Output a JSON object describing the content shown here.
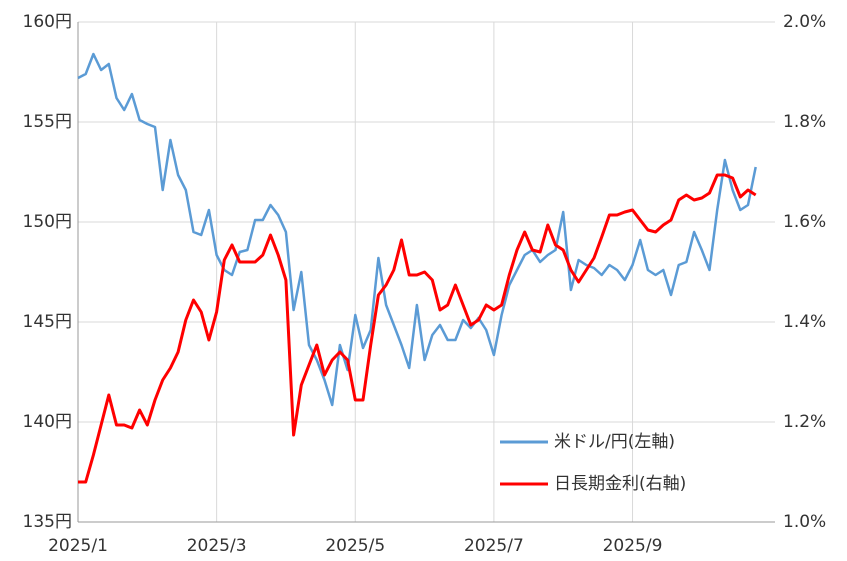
{
  "chart_data": {
    "type": "line",
    "categories": [
      "2025/1",
      null,
      null,
      null,
      null,
      null,
      null,
      null,
      null,
      null,
      null,
      null,
      null,
      null,
      null,
      null,
      null,
      null,
      "2025/3",
      null,
      null,
      null,
      null,
      null,
      null,
      null,
      null,
      null,
      null,
      null,
      null,
      null,
      null,
      null,
      null,
      null,
      "2025/5",
      null,
      null,
      null,
      null,
      null,
      null,
      null,
      null,
      null,
      null,
      null,
      null,
      null,
      null,
      null,
      null,
      null,
      "2025/7",
      null,
      null,
      null,
      null,
      null,
      null,
      null,
      null,
      null,
      null,
      null,
      null,
      null,
      null,
      null,
      null,
      null,
      "2025/9",
      null,
      null,
      null,
      null,
      null,
      null,
      null,
      null,
      null,
      null,
      null,
      null,
      null,
      null,
      null,
      null
    ],
    "series": [
      {
        "name": "米ドル/円(左軸)",
        "color": "#5b9bd5",
        "axis": "y",
        "values": [
          157.2,
          157.4,
          158.4,
          157.6,
          157.9,
          156.2,
          155.6,
          156.4,
          155.1,
          154.9,
          154.75,
          151.6,
          154.1,
          152.35,
          151.6,
          149.5,
          149.35,
          150.6,
          148.35,
          147.6,
          147.35,
          148.5,
          148.6,
          150.1,
          150.1,
          150.85,
          150.35,
          149.5,
          145.6,
          147.5,
          143.85,
          143.1,
          142.1,
          140.85,
          143.85,
          142.6,
          145.35,
          143.7,
          144.6,
          148.2,
          145.85,
          144.85,
          143.85,
          142.7,
          145.85,
          143.1,
          144.35,
          144.85,
          144.1,
          144.1,
          145.1,
          144.7,
          145.2,
          144.6,
          143.35,
          145.35,
          146.85,
          147.6,
          148.35,
          148.6,
          148.0,
          148.35,
          148.6,
          150.5,
          146.6,
          148.1,
          147.85,
          147.7,
          147.35,
          147.85,
          147.6,
          147.1,
          147.85,
          149.1,
          147.6,
          147.35,
          147.6,
          146.35,
          147.85,
          148.0,
          149.5,
          148.6,
          147.6,
          150.6,
          153.1,
          151.6,
          150.6,
          150.85,
          152.75
        ]
      },
      {
        "name": "日長期金利(右軸)",
        "color": "#ff0000",
        "axis": "y2",
        "values": [
          1.08,
          1.08,
          1.134,
          1.194,
          1.254,
          1.194,
          1.194,
          1.188,
          1.224,
          1.194,
          1.244,
          1.284,
          1.308,
          1.34,
          1.404,
          1.444,
          1.42,
          1.364,
          1.42,
          1.524,
          1.554,
          1.52,
          1.52,
          1.52,
          1.534,
          1.574,
          1.534,
          1.484,
          1.174,
          1.274,
          1.314,
          1.354,
          1.294,
          1.324,
          1.34,
          1.324,
          1.244,
          1.244,
          1.354,
          1.454,
          1.474,
          1.504,
          1.564,
          1.494,
          1.494,
          1.5,
          1.484,
          1.424,
          1.434,
          1.474,
          1.434,
          1.394,
          1.404,
          1.434,
          1.424,
          1.434,
          1.494,
          1.544,
          1.58,
          1.544,
          1.54,
          1.594,
          1.554,
          1.544,
          1.504,
          1.48,
          1.504,
          1.528,
          1.57,
          1.614,
          1.614,
          1.62,
          1.624,
          1.604,
          1.584,
          1.58,
          1.594,
          1.604,
          1.644,
          1.654,
          1.644,
          1.648,
          1.658,
          1.694,
          1.694,
          1.688,
          1.65,
          1.664,
          1.654
        ]
      }
    ],
    "ylim": [
      135,
      160
    ],
    "yticks": [
      {
        "value": 135,
        "label": "135円"
      },
      {
        "value": 140,
        "label": "140円"
      },
      {
        "value": 145,
        "label": "145円"
      },
      {
        "value": 150,
        "label": "150円"
      },
      {
        "value": 155,
        "label": "155円"
      },
      {
        "value": 160,
        "label": "160円"
      }
    ],
    "y2lim": [
      1.0,
      2.0
    ],
    "y2ticks": [
      {
        "value": 1.0,
        "label": "1.0%"
      },
      {
        "value": 1.2,
        "label": "1.2%"
      },
      {
        "value": 1.4,
        "label": "1.4%"
      },
      {
        "value": 1.6,
        "label": "1.6%"
      },
      {
        "value": 1.8,
        "label": "1.8%"
      },
      {
        "value": 2.0,
        "label": "2.0%"
      }
    ],
    "grid": true,
    "legend": "lower right"
  }
}
